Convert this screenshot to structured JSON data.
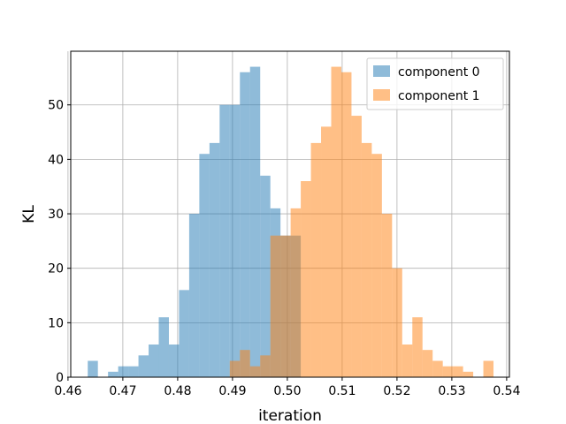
{
  "chart_data": {
    "type": "bar",
    "title": "",
    "xlabel": "iteration",
    "ylabel": "KL",
    "xlim": [
      0.4605,
      0.5405
    ],
    "ylim": [
      0,
      59.85
    ],
    "xticks": [
      0.46,
      0.47,
      0.48,
      0.49,
      0.5,
      0.51,
      0.52,
      0.53,
      0.54
    ],
    "xtick_labels": [
      "0.46",
      "0.47",
      "0.48",
      "0.49",
      "0.50",
      "0.51",
      "0.52",
      "0.53",
      "0.54"
    ],
    "yticks": [
      0,
      10,
      20,
      30,
      40,
      50
    ],
    "ytick_labels": [
      "0",
      "10",
      "20",
      "30",
      "40",
      "50"
    ],
    "grid": true,
    "legend_position": "top-right",
    "bin_width": 0.00185,
    "series": [
      {
        "name": "component 0",
        "color": "#1f77b4",
        "alpha": 0.5,
        "bin_start": 0.4636,
        "counts": [
          3,
          0,
          1,
          2,
          2,
          4,
          6,
          11,
          6,
          16,
          30,
          41,
          43,
          50,
          50,
          56,
          57,
          37,
          31,
          26,
          26
        ]
      },
      {
        "name": "component 1",
        "color": "#ff7f0e",
        "alpha": 0.5,
        "bin_start": 0.4895,
        "counts": [
          3,
          5,
          2,
          4,
          26,
          26,
          31,
          36,
          43,
          46,
          57,
          56,
          48,
          43,
          41,
          30,
          20,
          6,
          11,
          5,
          3,
          2,
          2,
          1,
          0,
          3
        ]
      }
    ],
    "overlay_counts": [
      3,
      5,
      2,
      4,
      26,
      26,
      4,
      2,
      5,
      3
    ]
  }
}
